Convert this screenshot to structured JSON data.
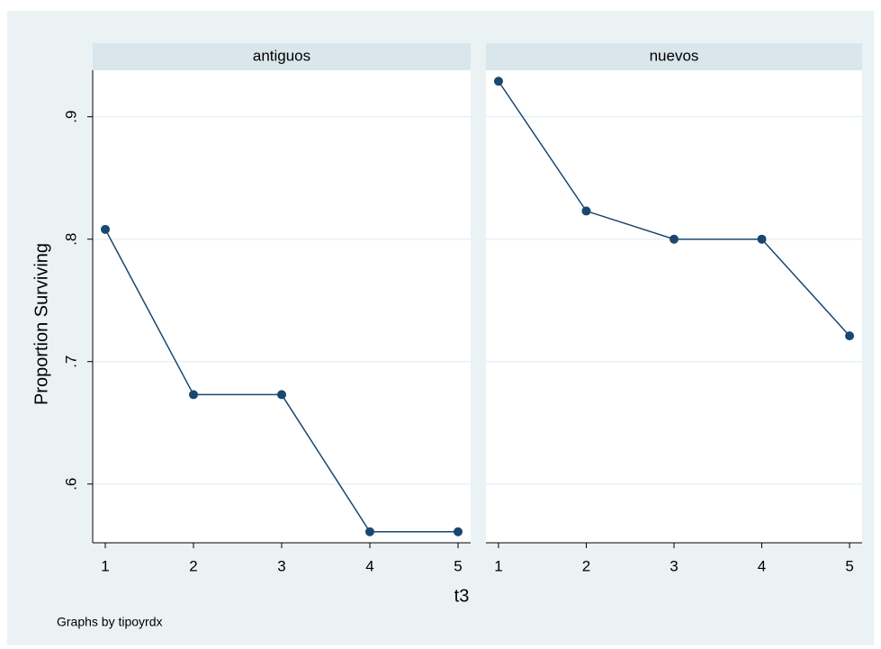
{
  "chart_data": [
    {
      "type": "line",
      "title": "antiguos",
      "x": [
        1,
        2,
        3,
        4,
        5
      ],
      "values": [
        0.808,
        0.673,
        0.673,
        0.561,
        0.561
      ],
      "color": "#1a476f",
      "xlim": [
        0.857,
        5.143
      ],
      "xticks": [
        1,
        2,
        3,
        4,
        5
      ],
      "ylim": [
        0.552,
        0.938
      ],
      "yticks": [
        {
          "value": 0.6,
          "label": ".6"
        },
        {
          "value": 0.7,
          "label": ".7"
        },
        {
          "value": 0.8,
          "label": ".8"
        },
        {
          "value": 0.9,
          "label": ".9"
        }
      ],
      "grid": true
    },
    {
      "type": "line",
      "title": "nuevos",
      "x": [
        1,
        2,
        3,
        4,
        5
      ],
      "values": [
        0.929,
        0.823,
        0.8,
        0.8,
        0.721
      ],
      "color": "#1a476f",
      "xlim": [
        0.857,
        5.143
      ],
      "xticks": [
        1,
        2,
        3,
        4,
        5
      ],
      "ylim": [
        0.552,
        0.938
      ],
      "yticks": [
        {
          "value": 0.6,
          "label": ".6"
        },
        {
          "value": 0.7,
          "label": ".7"
        },
        {
          "value": 0.8,
          "label": ".8"
        },
        {
          "value": 0.9,
          "label": ".9"
        }
      ],
      "grid": true
    }
  ],
  "xlabel": "t3",
  "ylabel": "Proportion Surviving",
  "note": "Graphs by tipoyrdx"
}
